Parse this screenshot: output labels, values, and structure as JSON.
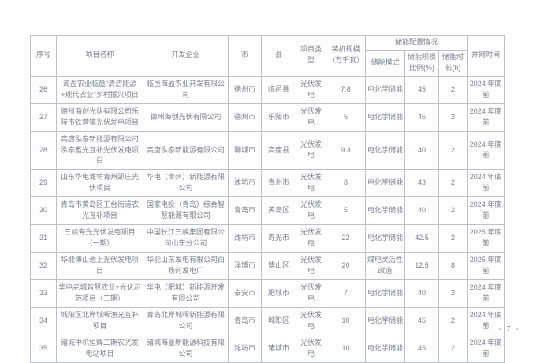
{
  "page": {
    "footer_page_number": "- 7 -"
  },
  "table": {
    "headers": {
      "index": "序号",
      "project_name": "项目名称",
      "developer": "开发企业",
      "city": "市",
      "county": "县",
      "project_type": "项目类型",
      "capacity": "装机规模（万千瓦）",
      "storage_group": "储能配置情况",
      "storage_mode": "储能模式",
      "storage_ratio": "储能规模比例(%)",
      "storage_duration": "储能时长(h)",
      "grid_time": "并网时间"
    },
    "rows": [
      {
        "index": "26",
        "project_name": "海盈农业临盘\"清洁能源+现代农业\"乡村振兴项目",
        "developer": "临邑海盈农业开发有限公司",
        "city": "德州市",
        "county": "临邑县",
        "project_type": "光伏发电",
        "capacity": "7.8",
        "storage_mode": "电化学储能",
        "storage_ratio": "45",
        "storage_duration": "2",
        "grid_time": "2024 年底前"
      },
      {
        "index": "27",
        "project_name": "德州海创光伏有限公司乐陵市铁营镇光伏发电项目",
        "developer": "德州海创光伏有限公司",
        "city": "德州市",
        "county": "乐陵市",
        "project_type": "光伏发电",
        "capacity": "5",
        "storage_mode": "电化学储能",
        "storage_ratio": "45",
        "storage_duration": "2",
        "grid_time": "2024 年底前"
      },
      {
        "index": "28",
        "project_name": "高唐泓泰新能源有限公司泓泰蓄光互补光伏发电项目",
        "developer": "高唐泓泰新能源有限公司",
        "city": "聊城市",
        "county": "高唐县",
        "project_type": "光伏发电",
        "capacity": "9.3",
        "storage_mode": "电化学储能",
        "storage_ratio": "40",
        "storage_duration": "2",
        "grid_time": "2024 年底前"
      },
      {
        "index": "29",
        "project_name": "山东华电潍坊青州邵庄光伏项目",
        "developer": "华电（青州）新能源有限公司",
        "city": "潍坊市",
        "county": "青州市",
        "project_type": "光伏发电",
        "capacity": "8",
        "storage_mode": "电化学储能",
        "storage_ratio": "43",
        "storage_duration": "2",
        "grid_time": "2024 年底前"
      },
      {
        "index": "30",
        "project_name": "青岛市黄岛区王台街道农光互补项目",
        "developer": "国家电投（青岛）综合智慧能源有限公司",
        "city": "青岛市",
        "county": "黄岛区",
        "project_type": "光伏发电",
        "capacity": "5",
        "storage_mode": "电化学储能",
        "storage_ratio": "40",
        "storage_duration": "2",
        "grid_time": "2024 年底前"
      },
      {
        "index": "31",
        "project_name": "三峡寿光光伏发电项目（一期）",
        "developer": "中国长江三峡集团有限公司山东分公司",
        "city": "潍坊市",
        "county": "寿光市",
        "project_type": "光伏发电",
        "capacity": "22",
        "storage_mode": "电化学储能",
        "storage_ratio": "42.5",
        "storage_duration": "2",
        "grid_time": "2025 年底前"
      },
      {
        "index": "32",
        "project_name": "华能博山池上光伏发电项目",
        "developer": "华能山东发电有限公司白杨河发电厂",
        "city": "淄博市",
        "county": "博山区",
        "project_type": "光伏发电",
        "capacity": "20",
        "storage_mode": "煤电灵活性改造",
        "storage_ratio": "12.5",
        "storage_duration": "8",
        "grid_time": "2025 年底前"
      },
      {
        "index": "33",
        "project_name": "华电老城智慧农业+光伏示范项目（三期）",
        "developer": "华电（肥城）新能源开发有限公司",
        "city": "泰安市",
        "county": "肥城市",
        "project_type": "光伏发电",
        "capacity": "7",
        "storage_mode": "电化学储能",
        "storage_ratio": "40",
        "storage_duration": "2",
        "grid_time": "2024 年底前"
      },
      {
        "index": "34",
        "project_name": "城阳区北岸城晖渔光互补项目",
        "developer": "青岛北岸城晖新能源有限公司",
        "city": "青岛市",
        "county": "城阳区",
        "project_type": "光伏发电",
        "capacity": "10",
        "storage_mode": "电化学储能",
        "storage_ratio": "45",
        "storage_duration": "2",
        "grid_time": "2024 年底前"
      },
      {
        "index": "35",
        "project_name": "诸城中机恒辉二期农光发电站项目",
        "developer": "诸城海曼新能源科技有限公司",
        "city": "潍坊市",
        "county": "诸城市",
        "project_type": "光伏发电",
        "capacity": "10",
        "storage_mode": "电化学储能",
        "storage_ratio": "45",
        "storage_duration": "2",
        "grid_time": "2024 年底前"
      }
    ]
  }
}
